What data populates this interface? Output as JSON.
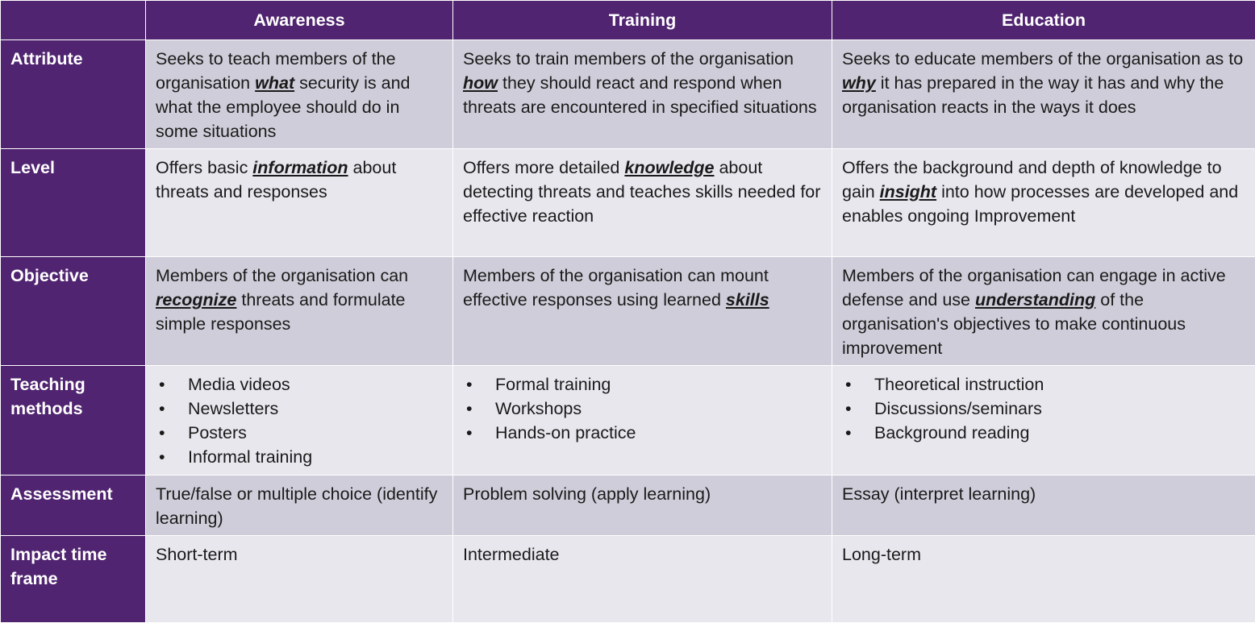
{
  "colors": {
    "header_bg": "#502470",
    "row_dark": "#cfcdd9",
    "row_light": "#e8e7ee",
    "header_text": "#ffffff"
  },
  "header": {
    "corner": "",
    "awareness": "Awareness",
    "training": "Training",
    "education": "Education"
  },
  "attribute": {
    "label": "Attribute",
    "awareness": {
      "pre": "Seeks to teach members of the organisation ",
      "kw": "what",
      "post": " security is and what the employee should do in some situations"
    },
    "training": {
      "pre": "Seeks to train members of the organisation ",
      "kw": "how",
      "post": " they should react and respond when threats are encountered in specified situations"
    },
    "education": {
      "pre": "Seeks to educate members of the organisation as to ",
      "kw": "why",
      "post": " it has prepared in the way it has and why the organisation reacts in the ways it does"
    }
  },
  "level": {
    "label": "Level",
    "awareness": {
      "pre": "Offers basic ",
      "kw": "information",
      "post": " about threats and responses"
    },
    "training": {
      "pre": "Offers more detailed ",
      "kw": "knowledge",
      "post": " about detecting threats and teaches skills needed for effective reaction"
    },
    "education": {
      "pre": "Offers the background and depth of knowledge to gain ",
      "kw": "insight",
      "post": " into how processes are developed and enables ongoing Improvement"
    }
  },
  "objective": {
    "label": "Objective",
    "awareness": {
      "pre": "Members of the organisation can ",
      "kw": "recognize",
      "post": " threats and formulate simple responses"
    },
    "training": {
      "pre": "Members of the organisation can mount effective responses using learned ",
      "kw": "skills",
      "post": ""
    },
    "education": {
      "pre": "Members of the organisation can engage in active defense and use ",
      "kw": "understanding",
      "post": " of the organisation's objectives to make continuous improvement"
    }
  },
  "teaching": {
    "label": "Teaching methods",
    "awareness": [
      "Media videos",
      "Newsletters",
      "Posters",
      "Informal training"
    ],
    "training": [
      "Formal training",
      "Workshops",
      "Hands-on practice"
    ],
    "education": [
      "Theoretical instruction",
      "Discussions/seminars",
      "Background reading"
    ]
  },
  "assessment": {
    "label": "Assessment",
    "awareness": "True/false or multiple choice (identify learning)",
    "training": "Problem solving (apply learning)",
    "education": "Essay (interpret learning)"
  },
  "impact": {
    "label": "Impact time frame",
    "awareness": "Short-term",
    "training": "Intermediate",
    "education": "Long-term"
  }
}
